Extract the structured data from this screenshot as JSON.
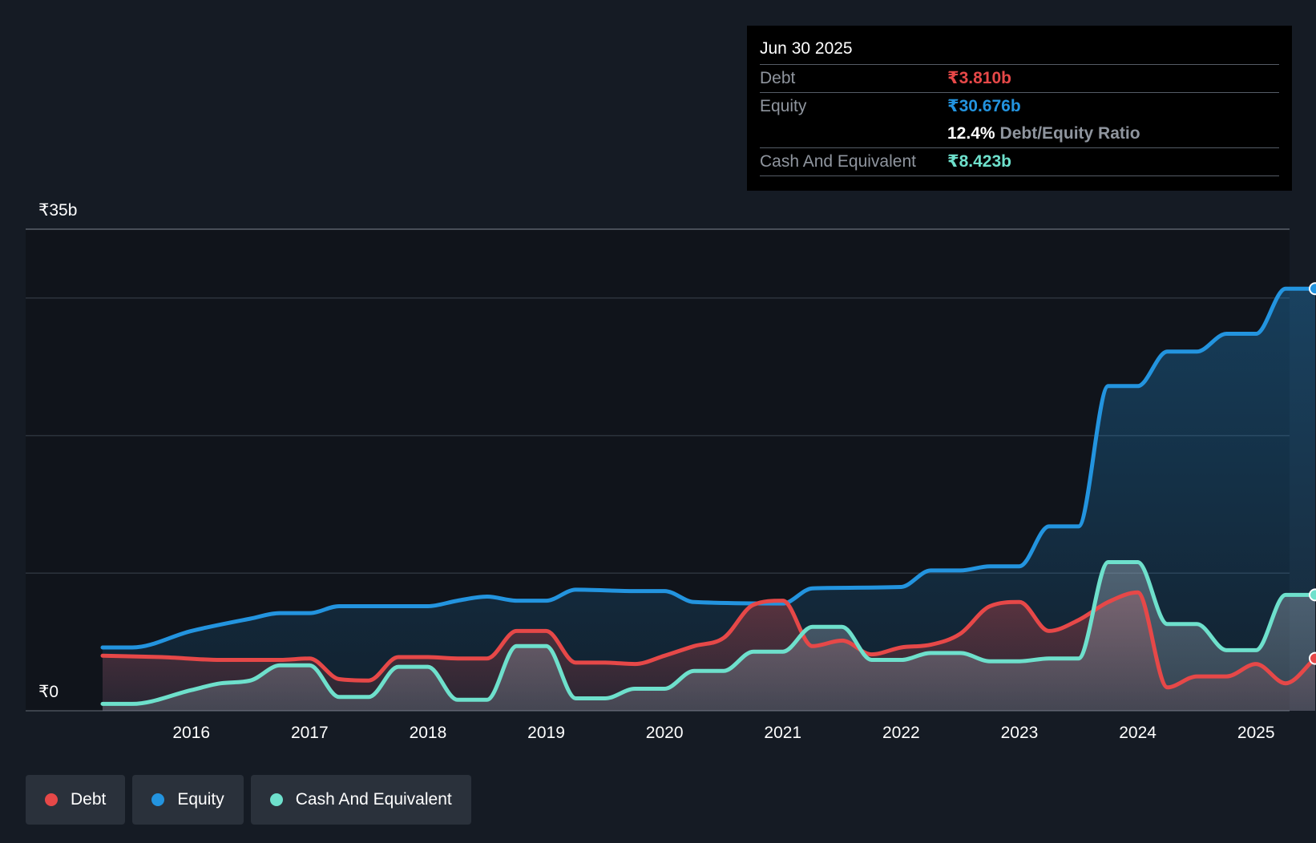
{
  "chart_data": {
    "type": "area",
    "currency_prefix": "₹",
    "y_unit": "b",
    "ylim": [
      0,
      35
    ],
    "y_tick_labels": [
      "₹0",
      "₹35b"
    ],
    "gridlines": [
      0,
      10,
      20,
      30,
      35
    ],
    "xlim": [
      2015.25,
      2025.5
    ],
    "x_tick_labels": [
      "2016",
      "2017",
      "2018",
      "2019",
      "2020",
      "2021",
      "2022",
      "2023",
      "2024",
      "2025"
    ],
    "x_tick_values": [
      2016,
      2017,
      2018,
      2019,
      2020,
      2021,
      2022,
      2023,
      2024,
      2025
    ],
    "series": [
      {
        "name": "Equity",
        "color": "#2394df",
        "points": [
          [
            2015.25,
            4.6
          ],
          [
            2015.5,
            4.6
          ],
          [
            2016.0,
            5.8
          ],
          [
            2016.5,
            6.7
          ],
          [
            2016.75,
            7.1
          ],
          [
            2017.0,
            7.1
          ],
          [
            2017.25,
            7.6
          ],
          [
            2018.0,
            7.6
          ],
          [
            2018.25,
            8.0
          ],
          [
            2018.5,
            8.3
          ],
          [
            2018.75,
            8.0
          ],
          [
            2019.0,
            8.0
          ],
          [
            2019.25,
            8.8
          ],
          [
            2019.75,
            8.7
          ],
          [
            2020.0,
            8.7
          ],
          [
            2020.25,
            7.9
          ],
          [
            2021.0,
            7.8
          ],
          [
            2021.25,
            8.9
          ],
          [
            2022.0,
            9.0
          ],
          [
            2022.25,
            10.2
          ],
          [
            2022.5,
            10.2
          ],
          [
            2022.75,
            10.5
          ],
          [
            2023.0,
            10.5
          ],
          [
            2023.25,
            13.4
          ],
          [
            2023.5,
            13.4
          ],
          [
            2023.75,
            23.6
          ],
          [
            2024.0,
            23.6
          ],
          [
            2024.25,
            26.1
          ],
          [
            2024.5,
            26.1
          ],
          [
            2024.75,
            27.4
          ],
          [
            2025.0,
            27.4
          ],
          [
            2025.25,
            30.676
          ],
          [
            2025.5,
            30.676
          ]
        ]
      },
      {
        "name": "Debt",
        "color": "#e64848",
        "points": [
          [
            2015.25,
            4.0
          ],
          [
            2015.75,
            3.9
          ],
          [
            2016.25,
            3.7
          ],
          [
            2016.75,
            3.7
          ],
          [
            2017.0,
            3.8
          ],
          [
            2017.25,
            2.3
          ],
          [
            2017.5,
            2.2
          ],
          [
            2017.75,
            3.9
          ],
          [
            2018.0,
            3.9
          ],
          [
            2018.25,
            3.8
          ],
          [
            2018.5,
            3.8
          ],
          [
            2018.75,
            5.8
          ],
          [
            2019.0,
            5.8
          ],
          [
            2019.25,
            3.5
          ],
          [
            2019.5,
            3.5
          ],
          [
            2019.75,
            3.4
          ],
          [
            2020.0,
            4.0
          ],
          [
            2020.25,
            4.7
          ],
          [
            2020.5,
            5.3
          ],
          [
            2020.75,
            7.7
          ],
          [
            2021.0,
            8.0
          ],
          [
            2021.25,
            4.7
          ],
          [
            2021.5,
            5.1
          ],
          [
            2021.75,
            4.1
          ],
          [
            2022.0,
            4.6
          ],
          [
            2022.25,
            4.8
          ],
          [
            2022.5,
            5.6
          ],
          [
            2022.75,
            7.6
          ],
          [
            2023.0,
            7.9
          ],
          [
            2023.25,
            5.8
          ],
          [
            2023.5,
            6.6
          ],
          [
            2023.75,
            7.9
          ],
          [
            2024.0,
            8.6
          ],
          [
            2024.25,
            1.7
          ],
          [
            2024.5,
            2.5
          ],
          [
            2024.75,
            2.5
          ],
          [
            2025.0,
            3.4
          ],
          [
            2025.25,
            2.0
          ],
          [
            2025.5,
            3.81
          ]
        ]
      },
      {
        "name": "Cash And Equivalent",
        "color": "#6ee0cc",
        "points": [
          [
            2015.25,
            0.5
          ],
          [
            2015.5,
            0.5
          ],
          [
            2016.0,
            1.5
          ],
          [
            2016.25,
            2.0
          ],
          [
            2016.5,
            2.2
          ],
          [
            2016.75,
            3.3
          ],
          [
            2017.0,
            3.3
          ],
          [
            2017.25,
            1.0
          ],
          [
            2017.5,
            1.0
          ],
          [
            2017.75,
            3.2
          ],
          [
            2018.0,
            3.2
          ],
          [
            2018.25,
            0.8
          ],
          [
            2018.5,
            0.8
          ],
          [
            2018.75,
            4.7
          ],
          [
            2019.0,
            4.7
          ],
          [
            2019.25,
            0.9
          ],
          [
            2019.5,
            0.9
          ],
          [
            2019.75,
            1.6
          ],
          [
            2020.0,
            1.6
          ],
          [
            2020.25,
            2.9
          ],
          [
            2020.5,
            2.9
          ],
          [
            2020.75,
            4.3
          ],
          [
            2021.0,
            4.3
          ],
          [
            2021.25,
            6.1
          ],
          [
            2021.5,
            6.1
          ],
          [
            2021.75,
            3.7
          ],
          [
            2022.0,
            3.7
          ],
          [
            2022.25,
            4.2
          ],
          [
            2022.5,
            4.2
          ],
          [
            2022.75,
            3.6
          ],
          [
            2023.0,
            3.6
          ],
          [
            2023.25,
            3.8
          ],
          [
            2023.5,
            3.8
          ],
          [
            2023.75,
            10.8
          ],
          [
            2024.0,
            10.8
          ],
          [
            2024.25,
            6.3
          ],
          [
            2024.5,
            6.3
          ],
          [
            2024.75,
            4.4
          ],
          [
            2025.0,
            4.4
          ],
          [
            2025.25,
            8.423
          ],
          [
            2025.5,
            8.423
          ]
        ]
      }
    ]
  },
  "tooltip": {
    "date": "Jun 30 2025",
    "debt_label": "Debt",
    "debt_value": "₹3.810b",
    "equity_label": "Equity",
    "equity_value": "₹30.676b",
    "ratio_value": "12.4%",
    "ratio_label": "Debt/Equity Ratio",
    "cash_label": "Cash And Equivalent",
    "cash_value": "₹8.423b"
  },
  "legend": [
    {
      "label": "Debt",
      "color": "#e64848"
    },
    {
      "label": "Equity",
      "color": "#2394df"
    },
    {
      "label": "Cash And Equivalent",
      "color": "#6ee0cc"
    }
  ],
  "colors": {
    "background": "#151b24",
    "plot_background": "#10141b",
    "debt": "#e64848",
    "equity": "#2394df",
    "cash": "#6ee0cc"
  }
}
